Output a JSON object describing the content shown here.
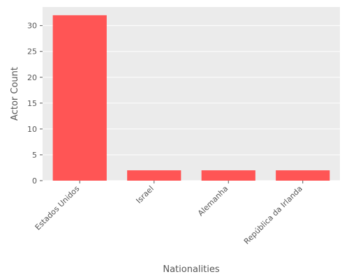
{
  "chart_data": {
    "type": "bar",
    "title": "",
    "xlabel": "Nationalities",
    "ylabel": "Actor Count",
    "categories": [
      "Estados Unidos",
      "Israel",
      "Alemanha",
      "República da Irlanda"
    ],
    "values": [
      32,
      2,
      2,
      2
    ],
    "ylim": [
      0,
      33.6
    ],
    "yticks": [
      0,
      5,
      10,
      15,
      20,
      25,
      30
    ],
    "grid": true,
    "colors": {
      "bar": "#ff5555",
      "background": "#ebebeb",
      "grid": "#ffffff",
      "text": "#555555"
    }
  }
}
